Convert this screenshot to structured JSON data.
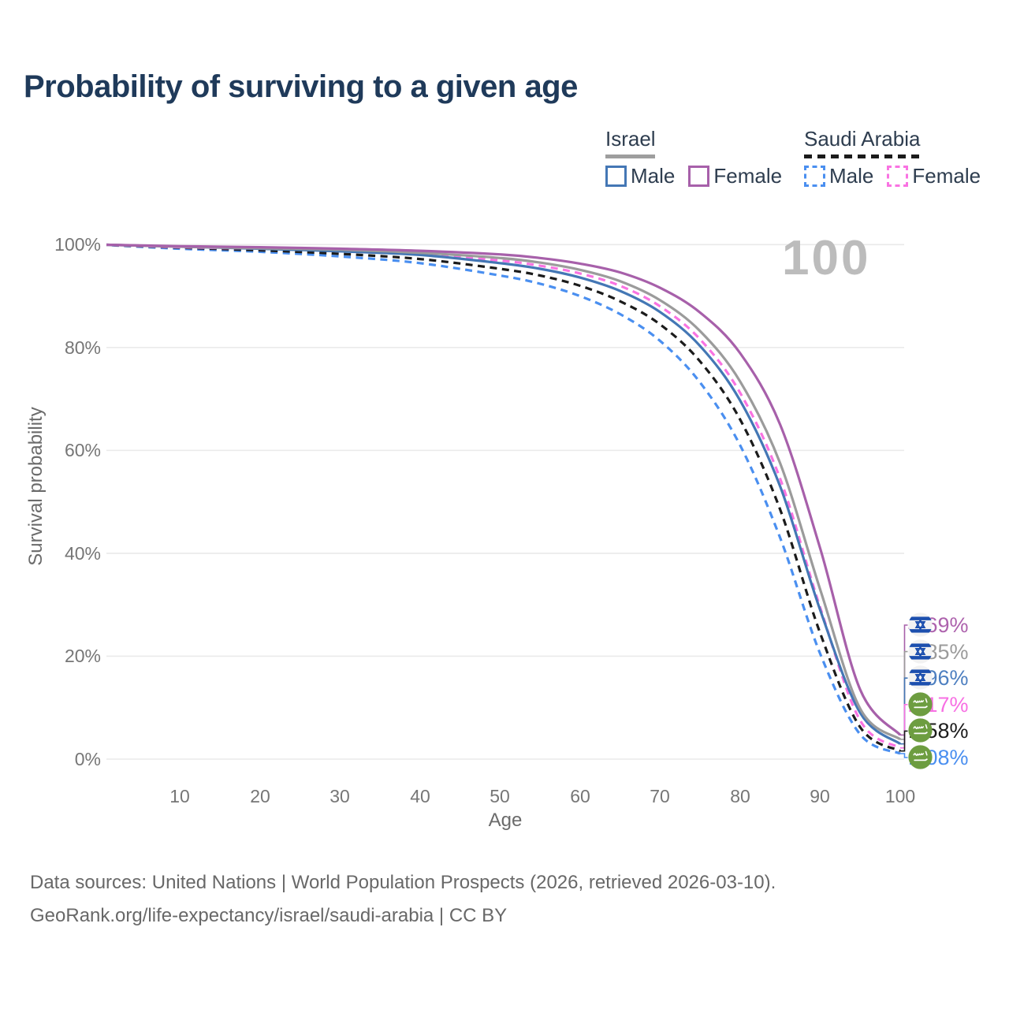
{
  "title": "Probability of surviving to a given age",
  "watermark": "100",
  "legend": {
    "groups": [
      {
        "country": "Israel",
        "underline": {
          "style": "solid",
          "color": "#9e9e9e",
          "width": 63
        },
        "items": [
          {
            "label": "Male",
            "color": "#4477b5",
            "dashed": false
          },
          {
            "label": "Female",
            "color": "#a760aa",
            "dashed": false
          }
        ]
      },
      {
        "country": "Saudi Arabia",
        "underline": {
          "style": "dashed",
          "color": "#1b1b1b",
          "width": 146
        },
        "items": [
          {
            "label": "Male",
            "color": "#4a8ff0",
            "dashed": true
          },
          {
            "label": "Female",
            "color": "#f973e2",
            "dashed": true
          }
        ]
      }
    ]
  },
  "chart_data": {
    "type": "line",
    "title": "Probability of surviving to a given age",
    "xlabel": "Age",
    "ylabel": "Survival probability",
    "xlim": [
      0,
      100
    ],
    "ylim": [
      0,
      100
    ],
    "grid": "horizontal",
    "grid_color": "#eaeaea",
    "x_ticks": [
      10,
      20,
      30,
      40,
      50,
      60,
      70,
      80,
      90,
      100
    ],
    "y_ticks": [
      {
        "v": 100,
        "label": "100%"
      },
      {
        "v": 80,
        "label": "80%"
      },
      {
        "v": 60,
        "label": "60%"
      },
      {
        "v": 40,
        "label": "40%"
      },
      {
        "v": 20,
        "label": "20%"
      },
      {
        "v": 0,
        "label": "0%"
      }
    ],
    "x": [
      0,
      10,
      20,
      30,
      40,
      50,
      55,
      60,
      65,
      70,
      75,
      80,
      85,
      90,
      95,
      100
    ],
    "series": [
      {
        "name": "Israel Female",
        "country": "Israel",
        "sex": "Female",
        "flag": "israel",
        "color": "#a760aa",
        "dashed": false,
        "label_color": "#ad62ad",
        "end_label": "4.69%",
        "values": [
          100,
          99.7,
          99.5,
          99.2,
          98.8,
          98.1,
          97.4,
          96.3,
          94.6,
          91.6,
          86.8,
          78.9,
          65.0,
          41.0,
          13.5,
          4.69
        ]
      },
      {
        "name": "Israel Both sexes",
        "country": "Israel",
        "sex": "Both",
        "flag": "israel",
        "color": "#9b9b9b",
        "dashed": false,
        "label_color": "#9b9b9b",
        "end_label": "3.85%",
        "values": [
          100,
          99.6,
          99.3,
          99.0,
          98.4,
          97.4,
          96.5,
          95.1,
          92.9,
          89.2,
          83.2,
          73.4,
          57.5,
          33.0,
          9.8,
          3.85
        ]
      },
      {
        "name": "Israel Male",
        "country": "Israel",
        "sex": "Male",
        "flag": "israel",
        "color": "#4477b5",
        "dashed": false,
        "label_color": "#4d7fc0",
        "end_label": "2.96%",
        "values": [
          100,
          99.6,
          99.2,
          98.7,
          98.0,
          96.4,
          95.3,
          93.6,
          91.0,
          86.9,
          80.3,
          69.7,
          53.0,
          29.0,
          9.0,
          2.96
        ]
      },
      {
        "name": "Saudi Arabia Female",
        "country": "Saudi Arabia",
        "sex": "Female",
        "flag": "saudi",
        "color": "#f973e2",
        "dashed": true,
        "label_color": "#f76fe3",
        "end_label": "2.17%",
        "values": [
          100,
          99.5,
          99.2,
          98.8,
          98.1,
          96.9,
          95.9,
          94.4,
          92.0,
          88.0,
          81.6,
          71.2,
          54.5,
          29.5,
          7.5,
          2.17
        ]
      },
      {
        "name": "Saudi Arabia Both sexes",
        "country": "Saudi Arabia",
        "sex": "Both",
        "flag": "saudi",
        "color": "#1b1b1b",
        "dashed": true,
        "label_color": "#1b1b1b",
        "end_label": "1.58%",
        "values": [
          100,
          99.4,
          98.9,
          98.2,
          97.2,
          95.3,
          94.0,
          92.0,
          89.0,
          84.5,
          77.3,
          66.0,
          48.5,
          24.5,
          6.2,
          1.58
        ]
      },
      {
        "name": "Saudi Arabia Male",
        "country": "Saudi Arabia",
        "sex": "Male",
        "flag": "saudi",
        "color": "#4a8ff0",
        "dashed": true,
        "label_color": "#4a8ff0",
        "end_label": "1.08%",
        "values": [
          100,
          99.2,
          98.6,
          97.7,
          96.4,
          94.0,
          92.4,
          90.0,
          86.5,
          81.3,
          73.2,
          61.0,
          43.0,
          20.5,
          4.8,
          1.08
        ]
      }
    ]
  },
  "footer": {
    "line1": "Data sources: United Nations | World Population Prospects (2026, retrieved 2026-03-10).",
    "line2": "GeoRank.org/life-expectancy/israel/saudi-arabia | CC BY"
  }
}
